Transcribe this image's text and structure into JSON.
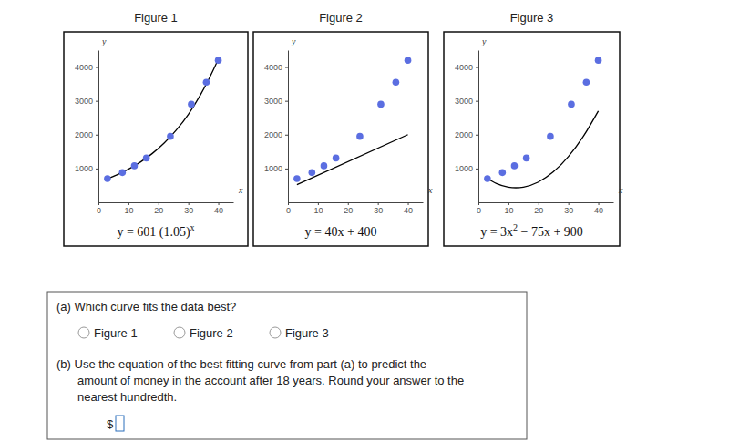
{
  "chart_data": [
    {
      "type": "scatter",
      "title": "Figure 1",
      "caption": [
        {
          "text": "y = 601 (1.05)"
        },
        {
          "superscript": "x"
        }
      ],
      "xlabel": "x",
      "ylabel": "y",
      "xlim": [
        0,
        45
      ],
      "ylim": [
        0,
        4500
      ],
      "xticks": [
        0,
        10,
        20,
        30,
        40
      ],
      "yticks": [
        1000,
        2000,
        3000,
        4000
      ],
      "series": [
        {
          "type": "scatter",
          "marker": "circle",
          "color": "#5b6ee1",
          "x": [
            3,
            8,
            12,
            16,
            24,
            31,
            36,
            40
          ],
          "values": [
            700,
            880,
            1080,
            1310,
            1950,
            2900,
            3550,
            4200
          ]
        },
        {
          "type": "line",
          "line_style": "solid",
          "color": "#000000",
          "x": [
            3,
            6,
            10,
            14,
            18,
            22,
            26,
            30,
            34,
            37,
            40
          ],
          "values": [
            695,
            805,
            980,
            1190,
            1445,
            1760,
            2140,
            2600,
            3170,
            3670,
            4230
          ]
        }
      ]
    },
    {
      "type": "scatter",
      "title": "Figure 2",
      "caption": [
        {
          "text": "y = 40x + 400"
        }
      ],
      "xlabel": "x",
      "ylabel": "y",
      "xlim": [
        0,
        45
      ],
      "ylim": [
        0,
        4500
      ],
      "xticks": [
        0,
        10,
        20,
        30,
        40
      ],
      "yticks": [
        1000,
        2000,
        3000,
        4000
      ],
      "series": [
        {
          "type": "scatter",
          "marker": "circle",
          "color": "#5b6ee1",
          "x": [
            3,
            8,
            12,
            16,
            24,
            31,
            36,
            40
          ],
          "values": [
            700,
            880,
            1080,
            1310,
            1950,
            2900,
            3550,
            4200
          ]
        },
        {
          "type": "line",
          "line_style": "solid",
          "color": "#000000",
          "x": [
            3,
            40
          ],
          "values": [
            520,
            2000
          ]
        }
      ]
    },
    {
      "type": "scatter",
      "title": "Figure 3",
      "caption": [
        {
          "text": "y = 3x"
        },
        {
          "superscript": "2"
        },
        {
          "text": " − 75x + 900"
        }
      ],
      "xlabel": "x",
      "ylabel": "y",
      "xlim": [
        0,
        45
      ],
      "ylim": [
        0,
        4500
      ],
      "xticks": [
        0,
        10,
        20,
        30,
        40
      ],
      "yticks": [
        1000,
        2000,
        3000,
        4000
      ],
      "series": [
        {
          "type": "scatter",
          "marker": "circle",
          "color": "#5b6ee1",
          "x": [
            3,
            8,
            12,
            16,
            24,
            31,
            36,
            40
          ],
          "values": [
            700,
            880,
            1080,
            1310,
            1950,
            2900,
            3550,
            4200
          ]
        },
        {
          "type": "line",
          "line_style": "solid",
          "color": "#000000",
          "x": [
            3,
            6,
            10,
            12.5,
            15,
            20,
            25,
            30,
            35,
            40
          ],
          "values": [
            702,
            558,
            450,
            431,
            450,
            600,
            900,
            1350,
            1950,
            2700
          ]
        }
      ]
    }
  ],
  "question": {
    "part_a": "(a) Which curve fits the data best?",
    "options": [
      "Figure 1",
      "Figure 2",
      "Figure 3"
    ],
    "part_b": [
      "(b) Use the equation of the best fitting curve from part (a) to predict the",
      "amount of money in the account after 18 years. Round your answer to the",
      "nearest hundredth."
    ],
    "answer_prefix": "$"
  }
}
